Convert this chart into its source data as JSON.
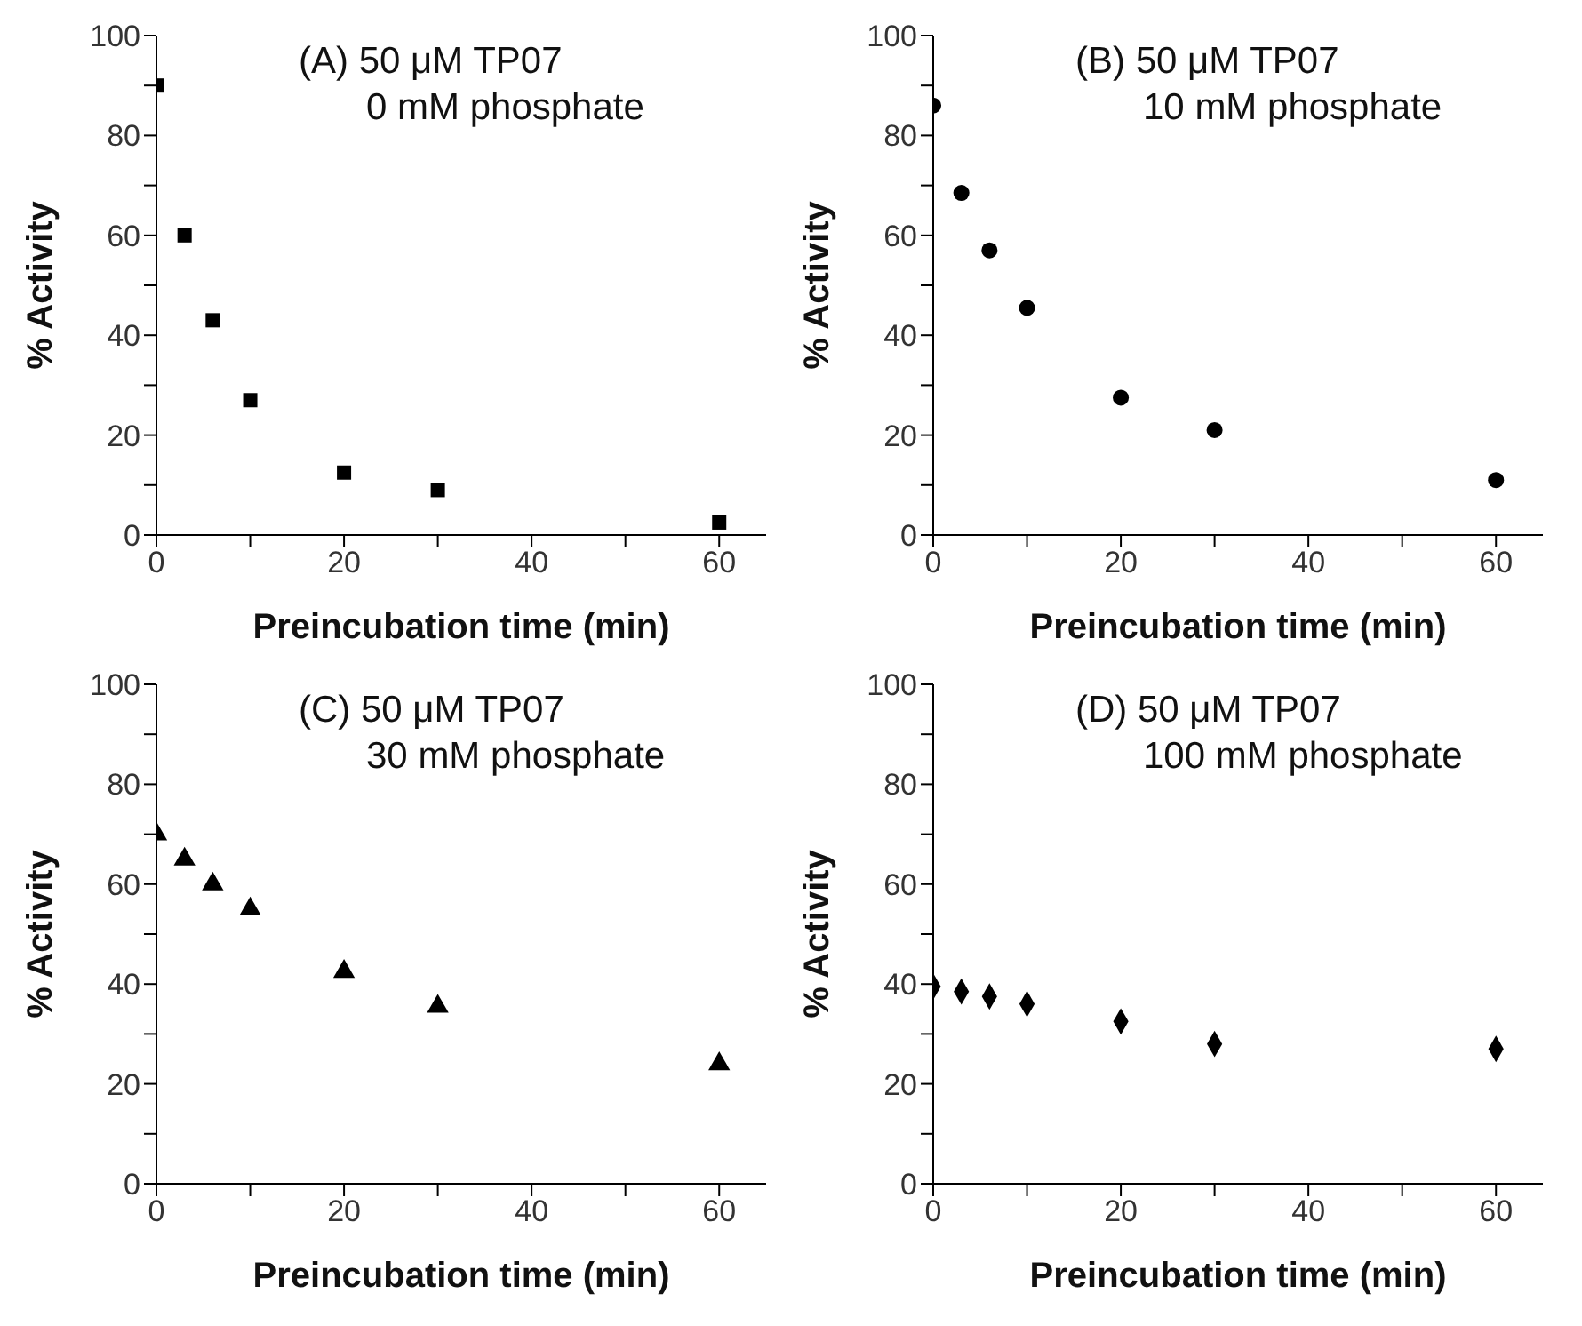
{
  "chart_data": [
    {
      "type": "scatter",
      "title": "(A) 50 μM TP07",
      "subtitle": "0 mM phosphate",
      "xlabel": "Preincubation time (min)",
      "ylabel": "% Activity",
      "x": [
        0,
        3,
        6,
        10,
        20,
        30,
        60
      ],
      "series": [
        {
          "color": "#000000",
          "values": [
            90,
            60,
            43,
            27,
            12.5,
            9,
            2.5
          ]
        }
      ],
      "marker": "square",
      "xlim": [
        0,
        65
      ],
      "ylim": [
        0,
        100
      ],
      "xticks": [
        0,
        {
          "value": 10,
          "label": null
        },
        20,
        {
          "value": 30,
          "label": null
        },
        40,
        {
          "value": 50,
          "label": null
        },
        60
      ],
      "yticks": [
        0,
        {
          "value": 10,
          "label": null
        },
        20,
        {
          "value": 30,
          "label": null
        },
        40,
        {
          "value": 50,
          "label": null
        },
        60,
        {
          "value": 70,
          "label": null
        },
        80,
        {
          "value": 90,
          "label": null
        },
        100
      ],
      "grid": false,
      "legend": false
    },
    {
      "type": "scatter",
      "title": "(B) 50 μM TP07",
      "subtitle": "10 mM phosphate",
      "xlabel": "Preincubation time (min)",
      "ylabel": "% Activity",
      "x": [
        0,
        3,
        6,
        10,
        20,
        30,
        60
      ],
      "series": [
        {
          "color": "#000000",
          "values": [
            86,
            68.5,
            57,
            45.5,
            27.5,
            21,
            11
          ]
        }
      ],
      "marker": "circle",
      "xlim": [
        0,
        65
      ],
      "ylim": [
        0,
        100
      ],
      "xticks": [
        0,
        {
          "value": 10,
          "label": null
        },
        20,
        {
          "value": 30,
          "label": null
        },
        40,
        {
          "value": 50,
          "label": null
        },
        60
      ],
      "yticks": [
        0,
        {
          "value": 10,
          "label": null
        },
        20,
        {
          "value": 30,
          "label": null
        },
        40,
        {
          "value": 50,
          "label": null
        },
        60,
        {
          "value": 70,
          "label": null
        },
        80,
        {
          "value": 90,
          "label": null
        },
        100
      ],
      "grid": false,
      "legend": false
    },
    {
      "type": "scatter",
      "title": "(C) 50 μM TP07",
      "subtitle": "30 mM phosphate",
      "xlabel": "Preincubation time (min)",
      "ylabel": "% Activity",
      "x": [
        0,
        3,
        6,
        10,
        20,
        30,
        60
      ],
      "series": [
        {
          "color": "#000000",
          "values": [
            70,
            65,
            60,
            55,
            42.5,
            35.5,
            24
          ]
        }
      ],
      "marker": "triangle",
      "xlim": [
        0,
        65
      ],
      "ylim": [
        0,
        100
      ],
      "xticks": [
        0,
        {
          "value": 10,
          "label": null
        },
        20,
        {
          "value": 30,
          "label": null
        },
        40,
        {
          "value": 50,
          "label": null
        },
        60
      ],
      "yticks": [
        0,
        {
          "value": 10,
          "label": null
        },
        20,
        {
          "value": 30,
          "label": null
        },
        40,
        {
          "value": 50,
          "label": null
        },
        60,
        {
          "value": 70,
          "label": null
        },
        80,
        {
          "value": 90,
          "label": null
        },
        100
      ],
      "grid": false,
      "legend": false
    },
    {
      "type": "scatter",
      "title": "(D) 50 μM TP07",
      "subtitle": "100 mM phosphate",
      "xlabel": "Preincubation time (min)",
      "ylabel": "% Activity",
      "x": [
        0,
        3,
        6,
        10,
        20,
        30,
        60
      ],
      "series": [
        {
          "color": "#000000",
          "values": [
            39.5,
            38.5,
            37.5,
            36,
            32.5,
            28,
            27
          ]
        }
      ],
      "marker": "diamond",
      "xlim": [
        0,
        65
      ],
      "ylim": [
        0,
        100
      ],
      "xticks": [
        0,
        {
          "value": 10,
          "label": null
        },
        20,
        {
          "value": 30,
          "label": null
        },
        40,
        {
          "value": 50,
          "label": null
        },
        60
      ],
      "yticks": [
        0,
        {
          "value": 10,
          "label": null
        },
        20,
        {
          "value": 30,
          "label": null
        },
        40,
        {
          "value": 50,
          "label": null
        },
        60,
        {
          "value": 70,
          "label": null
        },
        80,
        {
          "value": 90,
          "label": null
        },
        100
      ],
      "grid": false,
      "legend": false
    }
  ]
}
